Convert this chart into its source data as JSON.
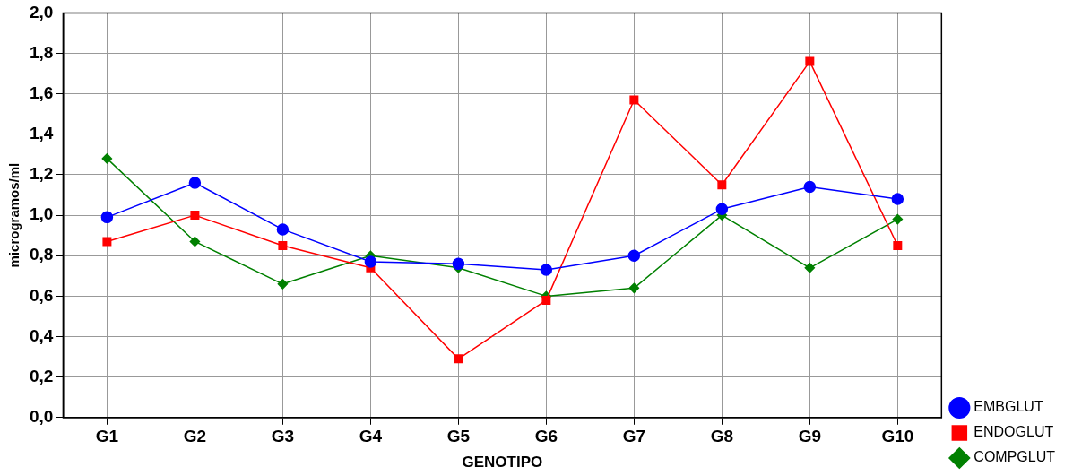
{
  "chart_data": {
    "type": "line",
    "xlabel": "GENOTIPO",
    "ylabel": "microgramos/ml",
    "categories": [
      "G1",
      "G2",
      "G3",
      "G4",
      "G5",
      "G6",
      "G7",
      "G8",
      "G9",
      "G10"
    ],
    "series": [
      {
        "name": "EMBGLUT",
        "color": "#0000ff",
        "marker": "circle",
        "values": [
          0.99,
          1.16,
          0.93,
          0.77,
          0.76,
          0.73,
          0.8,
          1.03,
          1.14,
          1.08
        ]
      },
      {
        "name": "ENDOGLUT",
        "color": "#ff0000",
        "marker": "square",
        "values": [
          0.87,
          1.0,
          0.85,
          0.74,
          0.29,
          0.58,
          1.57,
          1.15,
          1.76,
          0.85
        ]
      },
      {
        "name": "COMPGLUT",
        "color": "#008000",
        "marker": "diamond",
        "values": [
          1.28,
          0.87,
          0.66,
          0.8,
          0.74,
          0.6,
          0.64,
          1.0,
          0.74,
          0.98
        ]
      }
    ],
    "ylim": [
      0,
      2
    ],
    "yticks": [
      {
        "value": 0,
        "label": "0,0"
      },
      {
        "value": 0.2,
        "label": "0,2"
      },
      {
        "value": 0.4,
        "label": "0,4"
      },
      {
        "value": 0.6,
        "label": "0,6"
      },
      {
        "value": 0.8,
        "label": "0,8"
      },
      {
        "value": 1,
        "label": "1,0"
      },
      {
        "value": 1.2,
        "label": "1,2"
      },
      {
        "value": 1.4,
        "label": "1,4"
      },
      {
        "value": 1.6,
        "label": "1,6"
      },
      {
        "value": 1.8,
        "label": "1,8"
      },
      {
        "value": 2,
        "label": "2,0"
      }
    ],
    "grid": true,
    "legend": "bottom right",
    "line_style": "solid"
  }
}
